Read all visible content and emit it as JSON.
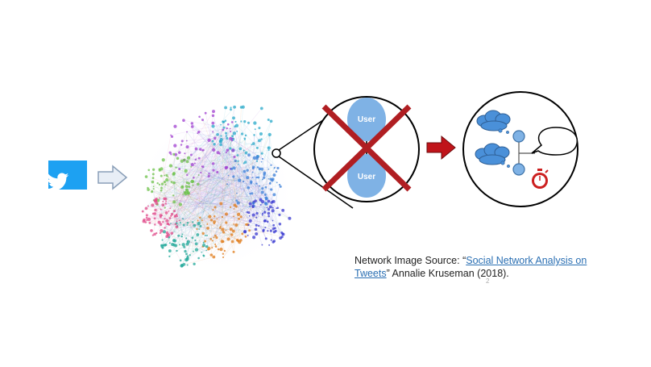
{
  "icons": {
    "twitter": "twitter-bird-icon",
    "arrow_light": "arrow-right-outline-icon",
    "arrow_red": "arrow-right-red-icon",
    "stopwatch": "stopwatch-icon",
    "cloud": "cloud-icon",
    "speech": "speech-bubble-icon"
  },
  "colors": {
    "twitter_blue": "#1da1f2",
    "user_node": "#7fb2e5",
    "cross_red": "#b01e22",
    "cloud_fill": "#4a90d9",
    "stopwatch_red": "#cc1f1f"
  },
  "nodes": {
    "top_user": "User",
    "bottom_user": "User"
  },
  "caption": {
    "prefix": "Network Image Source: “",
    "link_text": "Social Network Analysis on Tweets",
    "suffix": "” Annalie Kruseman (2018)."
  },
  "page_mark": "2"
}
